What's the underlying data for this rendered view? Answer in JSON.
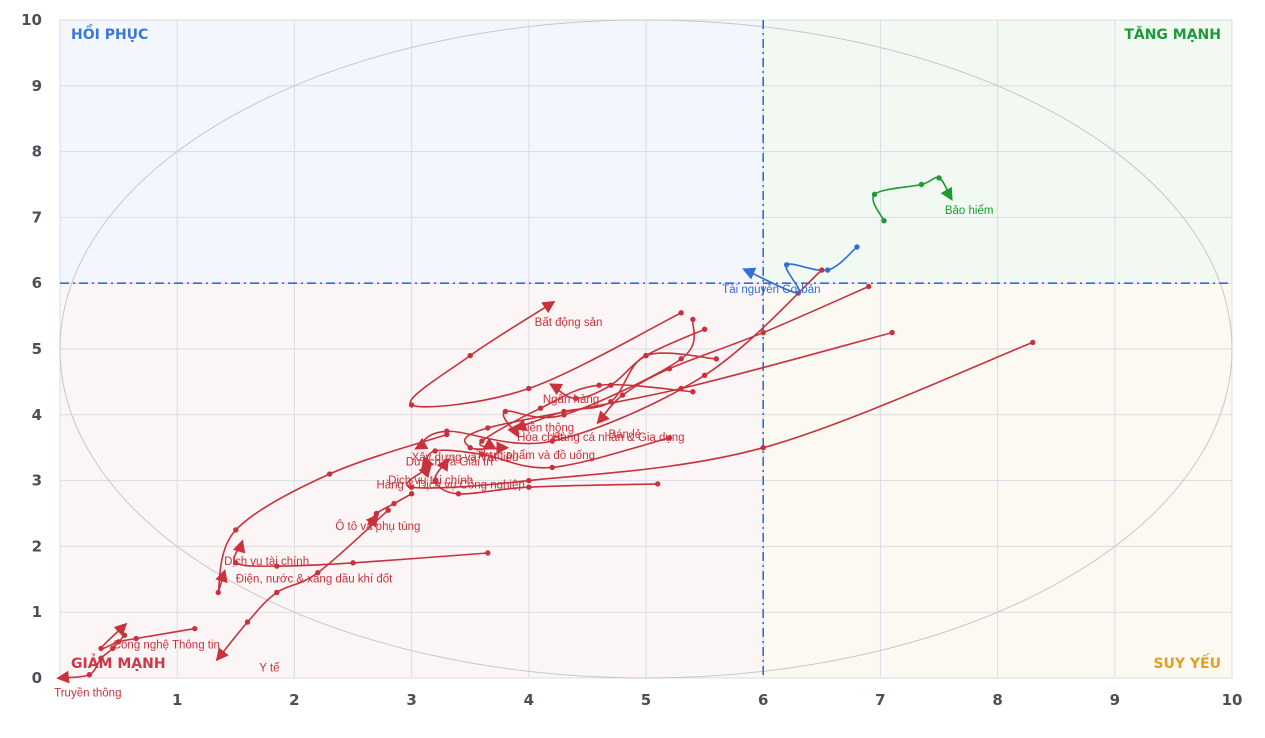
{
  "chart_data": {
    "type": "scatter",
    "variant": "relative-rotation-graph",
    "xlim": [
      0,
      10
    ],
    "ylim": [
      0,
      10
    ],
    "x_ticks": [
      "1",
      "2",
      "3",
      "4",
      "5",
      "6",
      "7",
      "8",
      "9",
      "10"
    ],
    "y_ticks": [
      "0",
      "1",
      "2",
      "3",
      "4",
      "5",
      "6",
      "7",
      "8",
      "9",
      "10"
    ],
    "grid": true,
    "divider": {
      "x": 6,
      "y": 6
    },
    "quadrants": [
      {
        "key": "top_left",
        "label": "HỒI PHỤC",
        "color": "#3a78d8",
        "fill": "#f3f7fd"
      },
      {
        "key": "top_right",
        "label": "TĂNG MẠNH",
        "color": "#1f9a3a",
        "fill": "#f2f8f2"
      },
      {
        "key": "bottom_left",
        "label": "GIẢM MẠNH",
        "color": "#d0364a",
        "fill": "#fcf5f5"
      },
      {
        "key": "bottom_right",
        "label": "SUY YẾU",
        "color": "#e0a020",
        "fill": "#fcf9f3"
      }
    ],
    "series": [
      {
        "name": "Bảo hiểm",
        "color": "#1e9a30",
        "points": [
          [
            7.03,
            6.95
          ],
          [
            6.95,
            7.35
          ],
          [
            7.35,
            7.5
          ],
          [
            7.5,
            7.6
          ],
          [
            7.6,
            7.3
          ]
        ]
      },
      {
        "name": "Tài nguyên Cơ bản",
        "color": "#2f6fd6",
        "points": [
          [
            6.8,
            6.55
          ],
          [
            6.55,
            6.2
          ],
          [
            6.2,
            6.28
          ],
          [
            6.3,
            5.85
          ],
          [
            5.85,
            6.2
          ]
        ]
      },
      {
        "name": "Bất động sản",
        "color": "#c8323c",
        "points": [
          [
            5.3,
            5.55
          ],
          [
            4.0,
            4.4
          ],
          [
            3.0,
            4.15
          ],
          [
            3.5,
            4.9
          ],
          [
            4.2,
            5.7
          ]
        ]
      },
      {
        "name": "Ngân hàng",
        "color": "#c8323c",
        "points": [
          [
            5.5,
            5.3
          ],
          [
            5.0,
            4.9
          ],
          [
            4.7,
            4.45
          ],
          [
            4.4,
            4.25
          ],
          [
            4.2,
            4.45
          ]
        ]
      },
      {
        "name": "Bán lẻ",
        "color": "#c8323c",
        "points": [
          [
            6.9,
            5.95
          ],
          [
            6.0,
            5.25
          ],
          [
            5.2,
            4.7
          ],
          [
            4.8,
            4.3
          ],
          [
            4.6,
            3.9
          ]
        ]
      },
      {
        "name": "Viễn thông",
        "color": "#c8323c",
        "points": [
          [
            5.4,
            5.45
          ],
          [
            5.3,
            4.85
          ],
          [
            4.3,
            4.0
          ],
          [
            3.8,
            4.05
          ],
          [
            3.9,
            3.7
          ]
        ]
      },
      {
        "name": "Hóa chất",
        "color": "#c8323c",
        "points": [
          [
            7.1,
            5.25
          ],
          [
            5.3,
            4.4
          ],
          [
            3.65,
            3.8
          ],
          [
            3.5,
            3.5
          ],
          [
            3.8,
            3.5
          ]
        ]
      },
      {
        "name": "Hàng cá nhân & Gia dụng",
        "color": "#c8323c",
        "points": [
          [
            5.6,
            4.85
          ],
          [
            5.0,
            4.9
          ],
          [
            4.7,
            4.2
          ],
          [
            4.3,
            4.05
          ],
          [
            3.9,
            3.8
          ]
        ]
      },
      {
        "name": "Thực phẩm và đồ uống",
        "color": "#c8323c",
        "points": [
          [
            5.4,
            4.35
          ],
          [
            4.6,
            4.45
          ],
          [
            4.1,
            4.1
          ],
          [
            3.6,
            3.6
          ],
          [
            3.7,
            3.5
          ]
        ]
      },
      {
        "name": "Xây dựng và Vật liệu",
        "color": "#c8323c",
        "points": [
          [
            5.2,
            3.65
          ],
          [
            4.2,
            3.2
          ],
          [
            3.6,
            3.4
          ],
          [
            3.2,
            3.45
          ],
          [
            3.1,
            3.2
          ]
        ]
      },
      {
        "name": "Du lịch và Giải trí",
        "color": "#c8323c",
        "points": [
          [
            6.5,
            6.2
          ],
          [
            5.5,
            4.6
          ],
          [
            4.2,
            3.6
          ],
          [
            3.3,
            3.75
          ],
          [
            3.05,
            3.5
          ]
        ]
      },
      {
        "name": "Dịch vụ tài chính",
        "color": "#c8323c",
        "points": [
          [
            8.3,
            5.1
          ],
          [
            6.0,
            3.5
          ],
          [
            4.0,
            3.0
          ],
          [
            3.0,
            2.9
          ],
          [
            3.15,
            3.2
          ]
        ]
      },
      {
        "name": "Hàng & Dịch vụ Công nghiệp",
        "color": "#c8323c",
        "points": [
          [
            5.1,
            2.95
          ],
          [
            4.0,
            2.9
          ],
          [
            3.4,
            2.8
          ],
          [
            3.2,
            3.0
          ],
          [
            3.3,
            3.3
          ]
        ]
      },
      {
        "name": "Ô tô và phụ tùng",
        "color": "#c8323c",
        "points": [
          [
            3.0,
            2.8
          ],
          [
            2.85,
            2.65
          ],
          [
            2.7,
            2.5
          ],
          [
            2.65,
            2.35
          ],
          [
            2.7,
            2.45
          ]
        ]
      },
      {
        "name": "Dịch vụ tài chính (2)",
        "color": "#c8323c",
        "points": [
          [
            3.65,
            1.9
          ],
          [
            2.5,
            1.75
          ],
          [
            1.85,
            1.7
          ],
          [
            1.5,
            1.75
          ],
          [
            1.55,
            2.05
          ]
        ]
      },
      {
        "name": "Điện, nước & xăng dầu khí đốt",
        "color": "#c8323c",
        "points": [
          [
            3.3,
            3.7
          ],
          [
            2.3,
            3.1
          ],
          [
            1.5,
            2.25
          ],
          [
            1.35,
            1.3
          ],
          [
            1.4,
            1.6
          ]
        ]
      },
      {
        "name": "Y tế",
        "color": "#c8323c",
        "points": [
          [
            2.8,
            2.55
          ],
          [
            2.2,
            1.6
          ],
          [
            1.85,
            1.3
          ],
          [
            1.6,
            0.85
          ],
          [
            1.35,
            0.3
          ]
        ]
      },
      {
        "name": "Công nghệ Thông tin",
        "color": "#c8323c",
        "points": [
          [
            1.15,
            0.75
          ],
          [
            0.65,
            0.6
          ],
          [
            0.5,
            0.55
          ],
          [
            0.35,
            0.45
          ],
          [
            0.55,
            0.8
          ]
        ]
      },
      {
        "name": "Truyền thông",
        "color": "#c8323c",
        "points": [
          [
            0.55,
            0.65
          ],
          [
            0.45,
            0.45
          ],
          [
            0.35,
            0.3
          ],
          [
            0.25,
            0.05
          ],
          [
            0.0,
            0.0
          ]
        ]
      }
    ],
    "labels": [
      {
        "text": "Bảo hiểm",
        "x": 7.55,
        "y": 7.05,
        "color": "#1e9a30"
      },
      {
        "text": "Tài nguyên Cơ bản",
        "x": 5.65,
        "y": 5.85,
        "color": "#2f6fd6"
      },
      {
        "text": "Bất động sản",
        "x": 4.05,
        "y": 5.35,
        "color": "#c8323c"
      },
      {
        "text": "Ngân hàng",
        "x": 4.12,
        "y": 4.18,
        "color": "#c8323c"
      },
      {
        "text": "Bán lẻ",
        "x": 4.68,
        "y": 3.65,
        "color": "#c8323c"
      },
      {
        "text": "Viễn thông",
        "x": 3.92,
        "y": 3.75,
        "color": "#c8323c"
      },
      {
        "text": "Hóa chất",
        "x": 3.9,
        "y": 3.6,
        "color": "#c8323c"
      },
      {
        "text": "Hàng cá nhân & Gia dụng",
        "x": 4.2,
        "y": 3.6,
        "color": "#c8323c"
      },
      {
        "text": "Thực phẩm và đồ uống",
        "x": 3.55,
        "y": 3.33,
        "color": "#c8323c"
      },
      {
        "text": "Xây dựng và Vật liệu",
        "x": 3.0,
        "y": 3.3,
        "color": "#c8323c"
      },
      {
        "text": "Du lịch và Giải trí",
        "x": 2.95,
        "y": 3.23,
        "color": "#c8323c"
      },
      {
        "text": "Dịch vụ tài chính",
        "x": 2.8,
        "y": 2.95,
        "color": "#c8323c"
      },
      {
        "text": "Hàng & Dịch vụ Công nghiệp",
        "x": 2.7,
        "y": 2.88,
        "color": "#c8323c"
      },
      {
        "text": "Ô tô và phụ tùng",
        "x": 2.35,
        "y": 2.25,
        "color": "#c8323c"
      },
      {
        "text": "Dịch vụ tài chính",
        "x": 1.4,
        "y": 1.72,
        "color": "#c8323c"
      },
      {
        "text": "Điện, nước & xăng dầu khí đốt",
        "x": 1.5,
        "y": 1.45,
        "color": "#c8323c"
      },
      {
        "text": "Y tế",
        "x": 1.7,
        "y": 0.1,
        "color": "#c8323c"
      },
      {
        "text": "Công nghệ Thông tin",
        "x": 0.45,
        "y": 0.45,
        "color": "#c8323c"
      },
      {
        "text": "Truyền thông",
        "x": -0.05,
        "y": -0.28,
        "color": "#c8323c"
      }
    ]
  }
}
